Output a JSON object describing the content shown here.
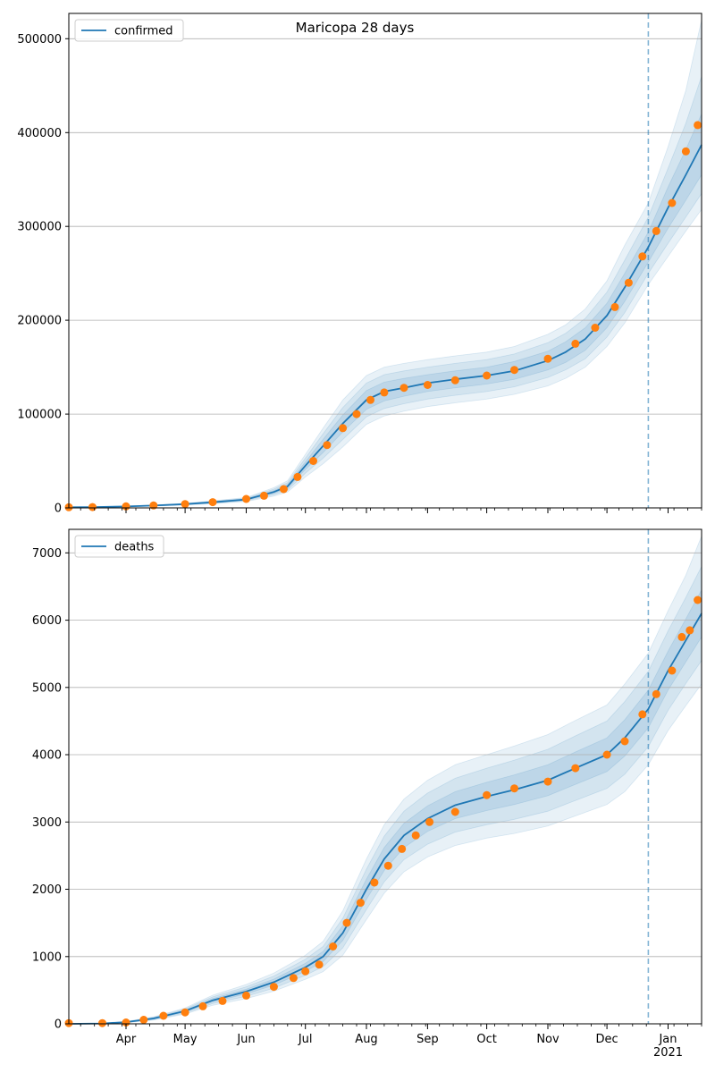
{
  "title": "Maricopa 28 days",
  "colors": {
    "model_line": "#1f77b4",
    "observed_points": "#ff7f0e",
    "band_fill": "#1f77b4",
    "forecast_marker": "#1f77b4",
    "grid": "#b0b0b0"
  },
  "chart_data": [
    {
      "type": "line",
      "legend": "confirmed",
      "legend_position": "top-left",
      "grid": "horizontal",
      "y_ticks": [
        "0",
        "100000",
        "200000",
        "300000",
        "400000",
        "500000"
      ],
      "y_tick_values": [
        0,
        100000,
        200000,
        300000,
        400000,
        500000
      ],
      "ylim": [
        0,
        527000
      ],
      "x_range": [
        "2020-03-03",
        "2021-01-18"
      ],
      "forecast_start": "2020-12-22",
      "series": [
        {
          "name": "confirmed",
          "kind": "model",
          "x": [
            "2020-03-03",
            "2020-03-15",
            "2020-04-01",
            "2020-04-15",
            "2020-05-01",
            "2020-05-15",
            "2020-06-01",
            "2020-06-15",
            "2020-06-22",
            "2020-07-01",
            "2020-07-10",
            "2020-07-20",
            "2020-08-01",
            "2020-08-10",
            "2020-08-20",
            "2020-09-01",
            "2020-09-15",
            "2020-10-01",
            "2020-10-15",
            "2020-11-01",
            "2020-11-10",
            "2020-11-20",
            "2020-12-01",
            "2020-12-10",
            "2020-12-22",
            "2021-01-01",
            "2021-01-10",
            "2021-01-18"
          ],
          "values": [
            700,
            900,
            1500,
            2500,
            4000,
            6000,
            9000,
            17000,
            23000,
            45000,
            66000,
            90000,
            115000,
            124000,
            128000,
            133000,
            137000,
            141000,
            146000,
            157000,
            166000,
            180000,
            205000,
            235000,
            278000,
            320000,
            355000,
            387000
          ],
          "band_50": [
            [
              700,
              700
            ],
            [
              900,
              900
            ],
            [
              1400,
              1600
            ],
            [
              2300,
              2700
            ],
            [
              3700,
              4300
            ],
            [
              5500,
              6500
            ],
            [
              8300,
              9700
            ],
            [
              15500,
              18500
            ],
            [
              21000,
              25000
            ],
            [
              41000,
              49000
            ],
            [
              59000,
              73000
            ],
            [
              81000,
              99000
            ],
            [
              105000,
              125000
            ],
            [
              114000,
              134000
            ],
            [
              119000,
              138000
            ],
            [
              124000,
              142000
            ],
            [
              128000,
              146000
            ],
            [
              132000,
              150000
            ],
            [
              137000,
              156000
            ],
            [
              147000,
              167000
            ],
            [
              155000,
              177000
            ],
            [
              168000,
              192000
            ],
            [
              192000,
              218000
            ],
            [
              220000,
              250000
            ],
            [
              262000,
              294000
            ],
            [
              298000,
              342000
            ],
            [
              328000,
              382000
            ],
            [
              355000,
              420000
            ]
          ],
          "band_80": [
            [
              700,
              700
            ],
            [
              900,
              900
            ],
            [
              1300,
              1700
            ],
            [
              2100,
              2900
            ],
            [
              3400,
              4600
            ],
            [
              5000,
              7000
            ],
            [
              7600,
              10400
            ],
            [
              14000,
              20000
            ],
            [
              19000,
              27000
            ],
            [
              37000,
              53000
            ],
            [
              53000,
              79000
            ],
            [
              73000,
              107000
            ],
            [
              97000,
              133000
            ],
            [
              106000,
              142000
            ],
            [
              111000,
              146000
            ],
            [
              116000,
              150000
            ],
            [
              120000,
              154000
            ],
            [
              124000,
              158000
            ],
            [
              129000,
              164000
            ],
            [
              139000,
              176000
            ],
            [
              147000,
              186000
            ],
            [
              159000,
              202000
            ],
            [
              182000,
              230000
            ],
            [
              208000,
              264000
            ],
            [
              250000,
              310000
            ],
            [
              282000,
              362000
            ],
            [
              310000,
              410000
            ],
            [
              335000,
              460000
            ]
          ],
          "band_95": [
            [
              700,
              700
            ],
            [
              900,
              900
            ],
            [
              1200,
              1800
            ],
            [
              1900,
              3100
            ],
            [
              3100,
              4900
            ],
            [
              4500,
              7500
            ],
            [
              6900,
              11100
            ],
            [
              12500,
              21500
            ],
            [
              17000,
              29000
            ],
            [
              33000,
              57000
            ],
            [
              47000,
              85000
            ],
            [
              65000,
              115000
            ],
            [
              89000,
              141000
            ],
            [
              98000,
              150000
            ],
            [
              103000,
              154000
            ],
            [
              108000,
              158000
            ],
            [
              112000,
              162000
            ],
            [
              116000,
              166000
            ],
            [
              121000,
              172000
            ],
            [
              130000,
              185000
            ],
            [
              138000,
              195000
            ],
            [
              150000,
              212000
            ],
            [
              172000,
              242000
            ],
            [
              197000,
              280000
            ],
            [
              238000,
              325000
            ],
            [
              268000,
              385000
            ],
            [
              295000,
              445000
            ],
            [
              318000,
              520000
            ]
          ]
        },
        {
          "name": "observed",
          "kind": "points",
          "x": [
            "2020-03-03",
            "2020-03-15",
            "2020-04-01",
            "2020-04-15",
            "2020-05-01",
            "2020-05-15",
            "2020-06-01",
            "2020-06-10",
            "2020-06-20",
            "2020-06-27",
            "2020-07-05",
            "2020-07-12",
            "2020-07-20",
            "2020-07-27",
            "2020-08-03",
            "2020-08-10",
            "2020-08-20",
            "2020-09-01",
            "2020-09-15",
            "2020-10-01",
            "2020-10-15",
            "2020-11-01",
            "2020-11-15",
            "2020-11-25",
            "2020-12-05",
            "2020-12-12",
            "2020-12-19",
            "2020-12-26",
            "2021-01-03",
            "2021-01-10",
            "2021-01-16"
          ],
          "values": [
            700,
            900,
            1600,
            2600,
            4100,
            6100,
            9500,
            13000,
            20000,
            33000,
            50000,
            67000,
            85000,
            100000,
            115000,
            123000,
            128000,
            131000,
            136000,
            141000,
            147000,
            159000,
            175000,
            192000,
            214000,
            240000,
            268000,
            295000,
            325000,
            380000,
            408000
          ]
        }
      ]
    },
    {
      "type": "line",
      "legend": "deaths",
      "legend_position": "top-left",
      "grid": "horizontal",
      "y_ticks": [
        "0",
        "1000",
        "2000",
        "3000",
        "4000",
        "5000",
        "6000",
        "7000"
      ],
      "y_tick_values": [
        0,
        1000,
        2000,
        3000,
        4000,
        5000,
        6000,
        7000
      ],
      "ylim": [
        0,
        7350
      ],
      "x_range": [
        "2020-03-03",
        "2021-01-18"
      ],
      "forecast_start": "2020-12-22",
      "x_ticks": [
        "Apr",
        "May",
        "Jun",
        "Jul",
        "Aug",
        "Sep",
        "Oct",
        "Nov",
        "Dec",
        "Jan\n2021"
      ],
      "x_tick_dates": [
        "2020-04-01",
        "2020-05-01",
        "2020-06-01",
        "2020-07-01",
        "2020-08-01",
        "2020-09-01",
        "2020-10-01",
        "2020-11-01",
        "2020-12-01",
        "2021-01-01"
      ],
      "series": [
        {
          "name": "deaths",
          "kind": "model",
          "x": [
            "2020-03-03",
            "2020-03-20",
            "2020-04-01",
            "2020-04-15",
            "2020-05-01",
            "2020-05-15",
            "2020-06-01",
            "2020-06-15",
            "2020-07-01",
            "2020-07-10",
            "2020-07-20",
            "2020-08-01",
            "2020-08-10",
            "2020-08-20",
            "2020-09-01",
            "2020-09-15",
            "2020-10-01",
            "2020-10-15",
            "2020-11-01",
            "2020-11-15",
            "2020-12-01",
            "2020-12-10",
            "2020-12-22",
            "2021-01-01",
            "2021-01-10",
            "2021-01-18"
          ],
          "values": [
            0,
            5,
            25,
            80,
            190,
            350,
            480,
            620,
            840,
            1000,
            1350,
            2000,
            2450,
            2800,
            3050,
            3250,
            3380,
            3480,
            3620,
            3800,
            4000,
            4250,
            4680,
            5250,
            5700,
            6100
          ],
          "band_50": [
            [
              0,
              0
            ],
            [
              5,
              5
            ],
            [
              22,
              28
            ],
            [
              72,
              88
            ],
            [
              175,
              205
            ],
            [
              325,
              375
            ],
            [
              445,
              515
            ],
            [
              575,
              665
            ],
            [
              780,
              900
            ],
            [
              925,
              1075
            ],
            [
              1240,
              1460
            ],
            [
              1850,
              2150
            ],
            [
              2280,
              2620
            ],
            [
              2620,
              2980
            ],
            [
              2860,
              3240
            ],
            [
              3050,
              3450
            ],
            [
              3170,
              3590
            ],
            [
              3260,
              3700
            ],
            [
              3390,
              3850
            ],
            [
              3560,
              4040
            ],
            [
              3750,
              4250
            ],
            [
              3980,
              4520
            ],
            [
              4400,
              4960
            ],
            [
              4960,
              5540
            ],
            [
              5380,
              6020
            ],
            [
              5750,
              6450
            ]
          ],
          "band_80": [
            [
              0,
              0
            ],
            [
              5,
              5
            ],
            [
              19,
              31
            ],
            [
              64,
              96
            ],
            [
              160,
              220
            ],
            [
              300,
              400
            ],
            [
              410,
              550
            ],
            [
              530,
              710
            ],
            [
              720,
              960
            ],
            [
              850,
              1150
            ],
            [
              1130,
              1570
            ],
            [
              1700,
              2300
            ],
            [
              2110,
              2790
            ],
            [
              2440,
              3160
            ],
            [
              2670,
              3430
            ],
            [
              2850,
              3650
            ],
            [
              2960,
              3800
            ],
            [
              3040,
              3920
            ],
            [
              3160,
              4080
            ],
            [
              3320,
              4280
            ],
            [
              3500,
              4500
            ],
            [
              3710,
              4790
            ],
            [
              4120,
              5240
            ],
            [
              4660,
              5840
            ],
            [
              5060,
              6340
            ],
            [
              5400,
              6800
            ]
          ],
          "band_95": [
            [
              0,
              0
            ],
            [
              5,
              5
            ],
            [
              16,
              34
            ],
            [
              56,
              104
            ],
            [
              145,
              235
            ],
            [
              275,
              425
            ],
            [
              375,
              585
            ],
            [
              485,
              755
            ],
            [
              660,
              1020
            ],
            [
              775,
              1225
            ],
            [
              1020,
              1680
            ],
            [
              1550,
              2450
            ],
            [
              1940,
              2960
            ],
            [
              2260,
              3340
            ],
            [
              2480,
              3620
            ],
            [
              2650,
              3850
            ],
            [
              2760,
              4000
            ],
            [
              2830,
              4130
            ],
            [
              2940,
              4300
            ],
            [
              3090,
              4510
            ],
            [
              3260,
              4740
            ],
            [
              3450,
              5050
            ],
            [
              3850,
              5510
            ],
            [
              4360,
              6140
            ],
            [
              4730,
              6670
            ],
            [
              5050,
              7250
            ]
          ]
        },
        {
          "name": "observed",
          "kind": "points",
          "x": [
            "2020-03-03",
            "2020-03-20",
            "2020-04-01",
            "2020-04-10",
            "2020-04-20",
            "2020-05-01",
            "2020-05-10",
            "2020-05-20",
            "2020-06-01",
            "2020-06-15",
            "2020-06-25",
            "2020-07-01",
            "2020-07-08",
            "2020-07-15",
            "2020-07-22",
            "2020-07-29",
            "2020-08-05",
            "2020-08-12",
            "2020-08-19",
            "2020-08-26",
            "2020-09-02",
            "2020-09-15",
            "2020-10-01",
            "2020-10-15",
            "2020-11-01",
            "2020-11-15",
            "2020-12-01",
            "2020-12-10",
            "2020-12-19",
            "2020-12-26",
            "2021-01-03",
            "2021-01-08",
            "2021-01-12",
            "2021-01-16"
          ],
          "values": [
            10,
            10,
            20,
            60,
            120,
            170,
            260,
            340,
            420,
            550,
            680,
            780,
            880,
            1150,
            1500,
            1800,
            2100,
            2350,
            2600,
            2800,
            3000,
            3150,
            3400,
            3500,
            3600,
            3800,
            4000,
            4200,
            4600,
            4900,
            5250,
            5750,
            5850,
            6300
          ]
        }
      ]
    }
  ]
}
